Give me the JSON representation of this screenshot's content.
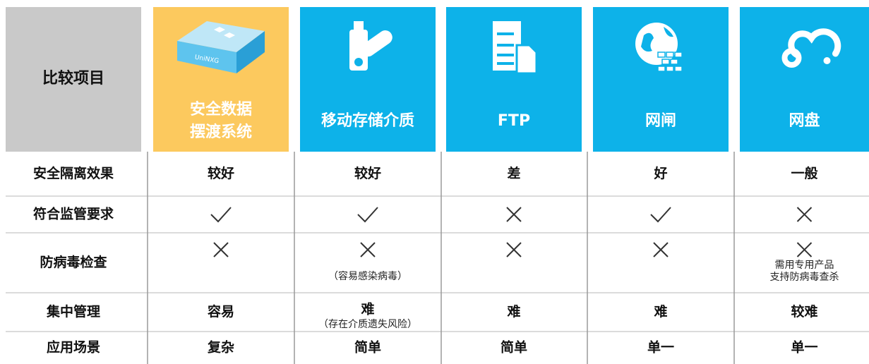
{
  "table": {
    "corner": "比较项目",
    "columns": [
      {
        "title": [
          "安全数据",
          "摆渡系统"
        ],
        "device_label": "UniNXG"
      },
      {
        "title": [
          "移动存储介质"
        ]
      },
      {
        "title": [
          "FTP"
        ]
      },
      {
        "title": [
          "网闸"
        ]
      },
      {
        "title": [
          "网盘"
        ]
      }
    ],
    "rows": [
      {
        "label": "安全隔离效果",
        "cells": [
          {
            "text": "较好"
          },
          {
            "text": "较好"
          },
          {
            "text": "差"
          },
          {
            "text": "好"
          },
          {
            "text": "一般"
          }
        ]
      },
      {
        "label": "符合监管要求",
        "cells": [
          {
            "icon": "check"
          },
          {
            "icon": "check"
          },
          {
            "icon": "cross"
          },
          {
            "icon": "check"
          },
          {
            "icon": "cross"
          }
        ]
      },
      {
        "label": "防病毒检查",
        "cells": [
          {
            "icon": "cross"
          },
          {
            "icon": "cross",
            "note": [
              "（容易感染病毒）"
            ]
          },
          {
            "icon": "cross"
          },
          {
            "icon": "cross"
          },
          {
            "icon": "cross",
            "note": [
              "需用专用产品",
              "支持防病毒查杀"
            ]
          }
        ]
      },
      {
        "label": "集中管理",
        "cells": [
          {
            "text": "容易"
          },
          {
            "text": "难",
            "note": [
              "（存在介质遗失风险）"
            ]
          },
          {
            "text": "难"
          },
          {
            "text": "难"
          },
          {
            "text": "较难"
          }
        ]
      },
      {
        "label": "应用场景",
        "cells": [
          {
            "text": "复杂"
          },
          {
            "text": "简单"
          },
          {
            "text": "简单"
          },
          {
            "text": "单一"
          },
          {
            "text": "单一"
          }
        ]
      }
    ]
  }
}
